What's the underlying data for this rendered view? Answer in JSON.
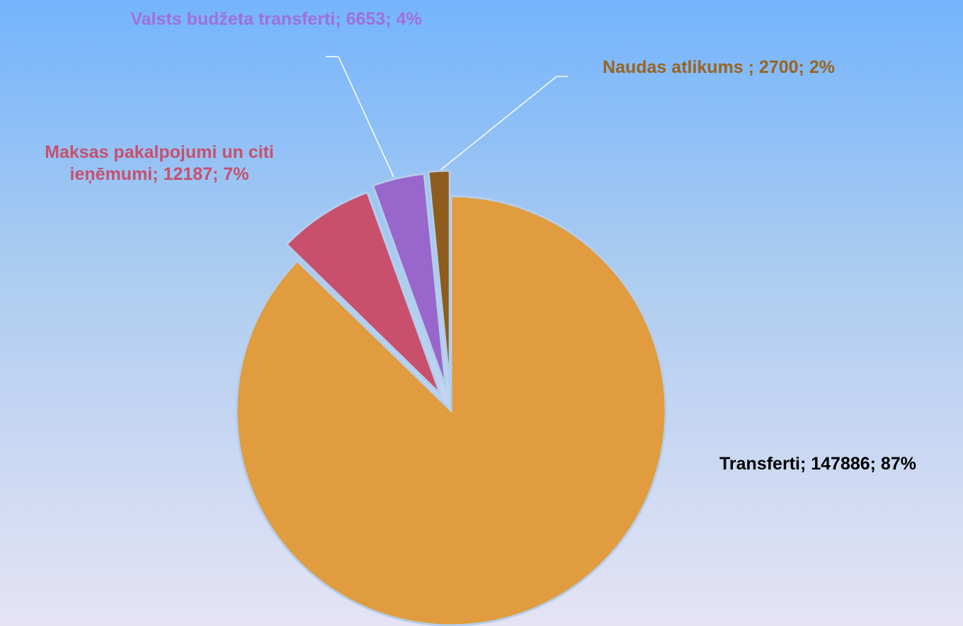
{
  "chart_data": {
    "type": "pie",
    "values": [
      147886,
      12187,
      6653,
      2700
    ],
    "value_labels": [
      "Transferti; 147886; 87%",
      "Maksas pakalpojumi un citi ieņēmumi; 12187; 7%",
      "Valsts budžeta transferti; 6653; 4%",
      "Naudas atlikums ; 2700; 2%"
    ],
    "colors": [
      "#e09c3e",
      "#c8506c",
      "#9966cc",
      "#8e5c1c"
    ]
  }
}
